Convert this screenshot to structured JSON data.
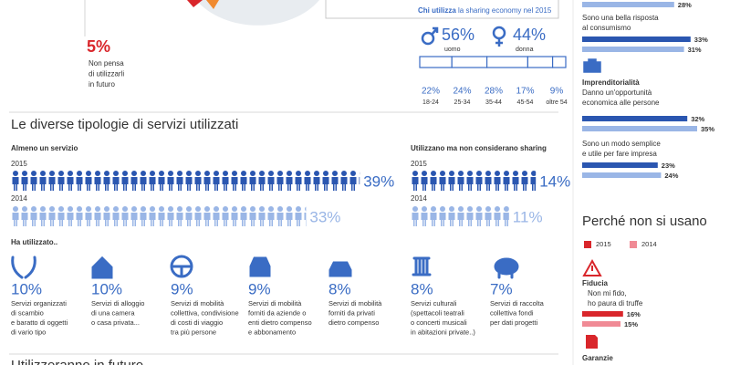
{
  "no_future": {
    "value": 5,
    "label": "5%",
    "text": [
      "Non pensa",
      "di utilizzarli",
      "in futuro"
    ]
  },
  "users": {
    "title_bold": "Chi utilizza",
    "title": "la sharing economy nel 2015",
    "gender": [
      {
        "value": 56,
        "label": "56%",
        "name": "uomo"
      },
      {
        "value": 44,
        "label": "44%",
        "name": "donna"
      }
    ],
    "age": [
      {
        "value": 22,
        "label": "22%",
        "name": "18-24"
      },
      {
        "value": 24,
        "label": "24%",
        "name": "25-34"
      },
      {
        "value": 28,
        "label": "28%",
        "name": "35-44"
      },
      {
        "value": 17,
        "label": "17%",
        "name": "45-54"
      },
      {
        "value": 9,
        "label": "9%",
        "name": "oltre 54"
      }
    ]
  },
  "reasons_for": {
    "colors": [
      "#2a56b0",
      "#9ab6e6"
    ],
    "cut_bar": {
      "value": 28,
      "label": "28%"
    },
    "items": [
      {
        "text": [
          "Sono una bella risposta",
          "al consumismo"
        ],
        "bars": [
          {
            "value": 33,
            "label": "33%"
          },
          {
            "value": 31,
            "label": "31%"
          }
        ]
      },
      {
        "heading": "Imprenditorialità",
        "text": [
          "Danno un'opportunità",
          "economica alle persone"
        ],
        "bars": [
          {
            "value": 32,
            "label": "32%"
          },
          {
            "value": 35,
            "label": "35%"
          }
        ]
      },
      {
        "text": [
          "Sono un modo semplice",
          "e utile per fare impresa"
        ],
        "bars": [
          {
            "value": 23,
            "label": "23%"
          },
          {
            "value": 24,
            "label": "24%"
          }
        ]
      }
    ]
  },
  "reasons_against": {
    "title": "Perché non si usano",
    "legend": [
      {
        "name": "2015",
        "color": "#d9262b"
      },
      {
        "name": "2014",
        "color": "#f08a95"
      }
    ],
    "items": [
      {
        "heading": "Fiducia",
        "text": [
          "Non mi fido,",
          "ho paura di truffe"
        ],
        "bars": [
          {
            "value": 16,
            "label": "16%"
          },
          {
            "value": 15,
            "label": "15%"
          }
        ]
      }
    ],
    "next_heading": "Garanzie"
  },
  "types": {
    "title": "Le diverse tipologie di servizi utilizzati",
    "colors": [
      "#2a56b0",
      "#9ab6e6"
    ],
    "groups": [
      {
        "name": "Almeno un servizio",
        "rows": [
          {
            "year": "2015",
            "value": 39,
            "label": "39%"
          },
          {
            "year": "2014",
            "value": 33,
            "label": "33%"
          }
        ]
      },
      {
        "name": "Utilizzano ma non considerano sharing",
        "rows": [
          {
            "year": "2015",
            "value": 14,
            "label": "14%"
          },
          {
            "year": "2014",
            "value": 11,
            "label": "11%"
          }
        ]
      }
    ],
    "used_title": "Ha utilizzato..",
    "services": [
      {
        "value": 10,
        "label": "10%",
        "text": [
          "Servizi organizzati",
          "di scambio",
          "e baratto di oggetti",
          "di vario tipo"
        ]
      },
      {
        "value": 10,
        "label": "10%",
        "text": [
          "Servizi di alloggio",
          "di una camera",
          "o casa privata..."
        ]
      },
      {
        "value": 9,
        "label": "9%",
        "text": [
          "Servizi di mobilità",
          "collettiva, condivisione",
          "di costi di viaggio",
          "tra più persone"
        ]
      },
      {
        "value": 9,
        "label": "9%",
        "text": [
          "Servizi di mobilità",
          "forniti da aziende o",
          "enti dietro compenso",
          "e abbonamento"
        ]
      },
      {
        "value": 8,
        "label": "8%",
        "text": [
          "Servizi di mobilità",
          "forniti da privati",
          "dietro compenso"
        ]
      },
      {
        "value": 8,
        "label": "8%",
        "text": [
          "Servizi culturali",
          "(spettacoli teatrali",
          "o concerti musicali",
          "in abitazioni private..)"
        ]
      },
      {
        "value": 7,
        "label": "7%",
        "text": [
          "Servizi di raccolta",
          "collettiva fondi",
          "per dati progetti"
        ]
      }
    ]
  },
  "next_section": "Utilizzeranno in futuro"
}
